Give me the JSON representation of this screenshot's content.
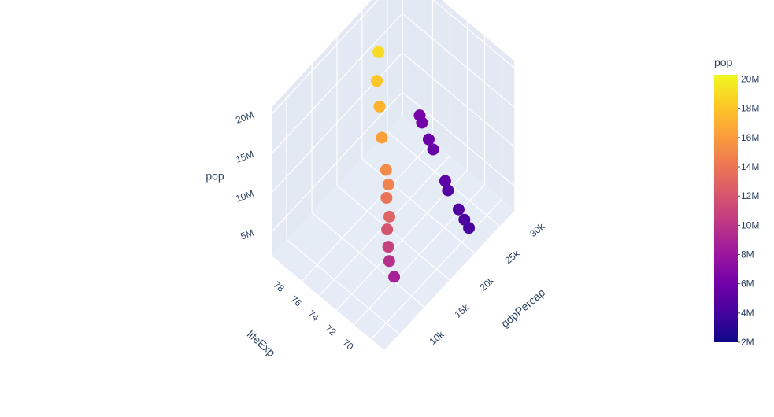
{
  "chart_data": {
    "type": "scatter3d",
    "title": "",
    "axes": {
      "x": {
        "label": "gdpPercap",
        "ticks": [
          "10k",
          "15k",
          "20k",
          "25k",
          "30k"
        ],
        "range": [
          7000,
          33000
        ]
      },
      "y": {
        "label": "lifeExp",
        "ticks": [
          "70",
          "72",
          "74",
          "76",
          "78"
        ],
        "range": [
          68.5,
          81.5
        ]
      },
      "z": {
        "label": "pop",
        "ticks": [
          "5M",
          "10M",
          "15M",
          "20M"
        ],
        "range": [
          2000000,
          21000000
        ]
      }
    },
    "colorbar": {
      "title": "pop",
      "ticks": [
        "2M",
        "4M",
        "6M",
        "8M",
        "10M",
        "12M",
        "14M",
        "16M",
        "18M",
        "20M"
      ],
      "range": [
        2000000,
        20300000
      ],
      "colorscale": [
        "#0d0887",
        "#46039f",
        "#7201a8",
        "#9c179e",
        "#bd3786",
        "#d8576b",
        "#ed7953",
        "#fb9f3a",
        "#fdca26",
        "#f0f921"
      ]
    },
    "grid": true,
    "points": [
      {
        "x": 10000,
        "y": 69.1,
        "z": 8700000
      },
      {
        "x": 10400,
        "y": 69.9,
        "z": 9700000
      },
      {
        "x": 10900,
        "y": 70.3,
        "z": 10800000
      },
      {
        "x": 11700,
        "y": 70.9,
        "z": 11900000
      },
      {
        "x": 12500,
        "y": 71.1,
        "z": 12800000
      },
      {
        "x": 13300,
        "y": 71.9,
        "z": 13900000
      },
      {
        "x": 14200,
        "y": 72.2,
        "z": 14700000
      },
      {
        "x": 15100,
        "y": 73.0,
        "z": 15200000
      },
      {
        "x": 17200,
        "y": 74.7,
        "z": 16300000
      },
      {
        "x": 19500,
        "y": 76.3,
        "z": 17200000
      },
      {
        "x": 21200,
        "y": 77.6,
        "z": 18100000
      },
      {
        "x": 23600,
        "y": 78.8,
        "z": 19000000
      },
      {
        "x": 25400,
        "y": 69.4,
        "z": 4100000
      },
      {
        "x": 25700,
        "y": 70.1,
        "z": 4300000
      },
      {
        "x": 26100,
        "y": 71.0,
        "z": 4500000
      },
      {
        "x": 26900,
        "y": 72.7,
        "z": 4800000
      },
      {
        "x": 27400,
        "y": 73.3,
        "z": 5100000
      },
      {
        "x": 29300,
        "y": 75.8,
        "z": 5500000
      },
      {
        "x": 29800,
        "y": 76.6,
        "z": 5700000
      },
      {
        "x": 30700,
        "y": 77.9,
        "z": 6000000
      },
      {
        "x": 31100,
        "y": 78.4,
        "z": 6200000
      }
    ]
  }
}
